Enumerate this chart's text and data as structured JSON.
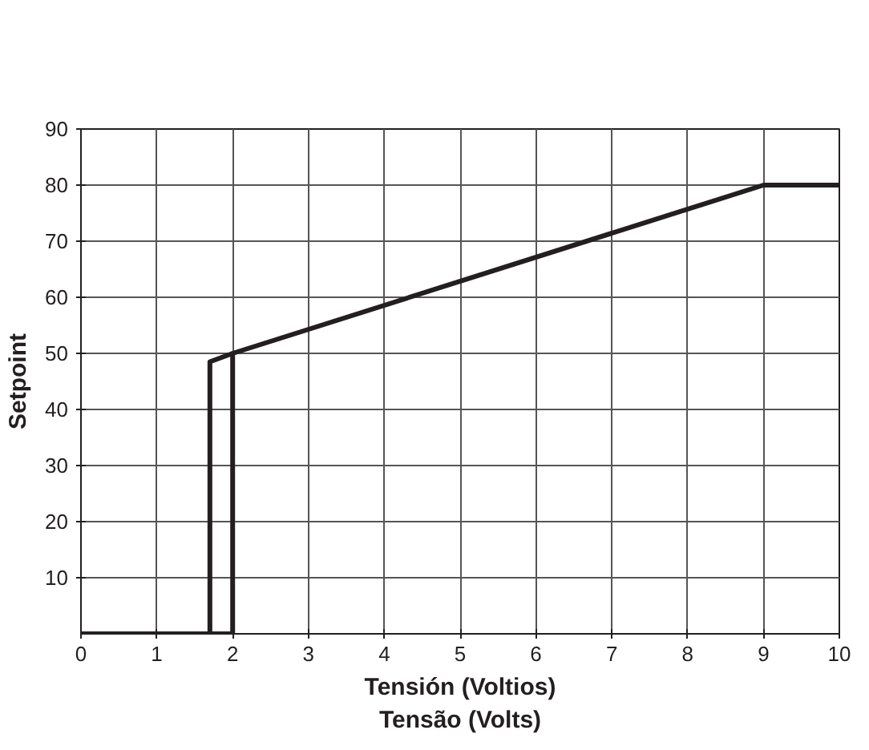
{
  "chart_data": {
    "type": "line",
    "xlabel": "Tensión (Voltios)\nTensão (Volts)",
    "ylabel": "Setpoint",
    "series": [
      {
        "color": "#231f20",
        "x": [
          0,
          2,
          2,
          9,
          10
        ],
        "values": [
          0,
          0,
          50,
          80,
          80
        ]
      },
      {
        "color": "#231f20",
        "x": [
          0,
          1.7,
          1.7,
          2
        ],
        "values": [
          0,
          0,
          48.5,
          50
        ]
      }
    ],
    "xlim": [
      0,
      10
    ],
    "ylim": [
      0,
      90
    ],
    "xticks": [
      0,
      1,
      2,
      3,
      4,
      5,
      6,
      7,
      8,
      9,
      10
    ],
    "yticks": [
      10,
      20,
      30,
      40,
      50,
      60,
      70,
      80,
      90
    ],
    "grid": true,
    "line_style": "solid"
  }
}
